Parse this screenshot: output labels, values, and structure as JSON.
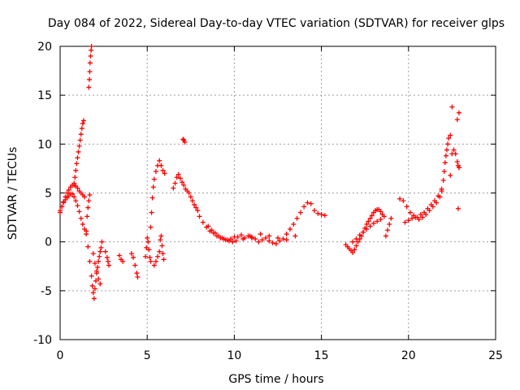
{
  "chart_data": {
    "type": "scatter",
    "title": "Day 084 of 2022, Sidereal Day-to-day VTEC variation (SDTVAR) for receiver glps",
    "xlabel": "GPS time / hours",
    "ylabel": "SDTVAR / TECUs",
    "xlim": [
      0,
      25
    ],
    "ylim": [
      -10,
      20
    ],
    "xticks": [
      0,
      5,
      10,
      15,
      20,
      25
    ],
    "xtick_labels": [
      "0",
      "5",
      "10",
      "15",
      "20",
      "25"
    ],
    "yticks": [
      -10,
      -5,
      0,
      5,
      10,
      15,
      20
    ],
    "ytick_labels": [
      "-10",
      "-5",
      "0",
      "5",
      "10",
      "15",
      "20"
    ],
    "grid": true,
    "marker": "+",
    "color": "#ff0000",
    "series": [
      {
        "name": "SDTVAR",
        "x": [
          0.0,
          0.1,
          0.2,
          0.3,
          0.4,
          0.5,
          0.6,
          0.7,
          0.8,
          0.9,
          1.0,
          1.1,
          1.2,
          1.3,
          1.4,
          0.0,
          0.1,
          0.2,
          0.3,
          0.4,
          0.5,
          0.6,
          0.7,
          0.8,
          0.9,
          1.0,
          1.1,
          1.2,
          1.3,
          1.4,
          1.5,
          1.55,
          1.6,
          1.65,
          1.7,
          0.8,
          0.85,
          0.9,
          0.95,
          1.0,
          1.05,
          1.1,
          1.15,
          1.2,
          1.25,
          1.3,
          1.35,
          1.65,
          1.68,
          1.7,
          1.72,
          1.75,
          1.78,
          1.8,
          1.5,
          1.6,
          1.7,
          1.8,
          1.85,
          1.9,
          1.95,
          2.0,
          2.05,
          2.1,
          2.15,
          2.2,
          2.25,
          2.3,
          2.35,
          2.4,
          1.9,
          2.0,
          2.1,
          2.2,
          2.3,
          2.6,
          2.7,
          2.75,
          2.8,
          3.4,
          3.5,
          3.6,
          4.1,
          4.2,
          4.3,
          4.4,
          4.45,
          4.9,
          4.95,
          5.0,
          5.05,
          5.1,
          5.15,
          5.2,
          5.4,
          5.5,
          5.6,
          5.7,
          5.75,
          5.8,
          5.85,
          5.9,
          5.95,
          5.2,
          5.25,
          5.3,
          5.35,
          5.4,
          5.5,
          5.6,
          5.7,
          5.8,
          5.9,
          6.0,
          6.5,
          6.6,
          6.7,
          6.8,
          6.9,
          7.0,
          7.1,
          7.2,
          7.3,
          7.4,
          7.5,
          7.6,
          7.7,
          7.8,
          7.06,
          7.1,
          7.16,
          7.9,
          8.0,
          8.2,
          8.4,
          8.6,
          8.8,
          9.0,
          9.2,
          9.4,
          9.6,
          9.8,
          10.0,
          10.2,
          10.4,
          10.6,
          10.8,
          11.0,
          8.5,
          8.7,
          8.9,
          9.1,
          9.3,
          9.5,
          9.7,
          9.9,
          10.1,
          10.5,
          10.9,
          11.0,
          11.2,
          11.4,
          11.6,
          11.8,
          12.0,
          12.2,
          12.4,
          12.6,
          12.8,
          13.0,
          13.2,
          13.4,
          13.6,
          13.8,
          14.0,
          14.2,
          14.4,
          14.6,
          14.8,
          15.0,
          15.2,
          11.5,
          12.0,
          12.5,
          13.0,
          13.5,
          16.4,
          16.5,
          16.6,
          16.7,
          16.8,
          16.9,
          17.0,
          17.1,
          17.2,
          17.3,
          17.4,
          17.5,
          17.6,
          17.7,
          17.8,
          17.9,
          18.0,
          18.1,
          18.2,
          18.3,
          18.4,
          18.5,
          18.6,
          16.8,
          17.0,
          17.2,
          17.4,
          17.6,
          17.8,
          18.0,
          18.2,
          18.4,
          18.7,
          18.8,
          18.9,
          19.0,
          19.5,
          19.7,
          19.9,
          20.1,
          20.3,
          20.5,
          20.7,
          20.9,
          21.1,
          21.3,
          21.5,
          21.7,
          21.9,
          19.8,
          20.0,
          20.2,
          20.4,
          20.6,
          20.8,
          21.0,
          21.2,
          21.4,
          21.6,
          21.8,
          21.9,
          22.0,
          22.05,
          22.1,
          22.15,
          22.2,
          22.25,
          22.3,
          22.4,
          22.5,
          22.6,
          22.7,
          22.8,
          22.85,
          22.9,
          22.4,
          22.8,
          22.9,
          22.5,
          22.9,
          22.85
        ],
        "y": [
          3.0,
          3.6,
          4.1,
          4.6,
          5.0,
          5.3,
          5.6,
          5.8,
          5.8,
          5.7,
          5.5,
          5.2,
          5.0,
          4.8,
          4.6,
          3.2,
          3.6,
          4.0,
          4.3,
          4.5,
          4.7,
          4.9,
          4.9,
          4.6,
          4.2,
          3.7,
          3.1,
          2.4,
          1.8,
          1.3,
          1.1,
          2.6,
          3.5,
          4.2,
          4.8,
          6.0,
          6.6,
          7.3,
          8.0,
          8.6,
          9.2,
          9.8,
          10.4,
          11.0,
          11.6,
          12.1,
          12.4,
          15.8,
          16.6,
          17.4,
          18.3,
          19.0,
          19.6,
          20.0,
          0.8,
          -0.5,
          -2.0,
          -3.5,
          -4.5,
          -5.2,
          -5.8,
          -4.8,
          -4.0,
          -3.2,
          -2.6,
          -2.0,
          -1.5,
          -1.0,
          -0.6,
          0.0,
          -1.2,
          -2.2,
          -3.0,
          -3.8,
          -4.3,
          -1.0,
          -1.6,
          -2.0,
          -2.4,
          -1.4,
          -1.8,
          -2.0,
          -1.2,
          -1.6,
          -2.4,
          -3.2,
          -3.6,
          -1.5,
          -0.6,
          0.4,
          0.0,
          -0.8,
          -1.6,
          -2.0,
          -2.4,
          -2.0,
          -1.5,
          -1.0,
          0.2,
          0.6,
          -0.4,
          -1.2,
          -1.8,
          1.5,
          3.0,
          4.5,
          5.6,
          6.4,
          7.2,
          7.8,
          8.3,
          7.8,
          7.3,
          7.0,
          5.5,
          6.0,
          6.6,
          6.9,
          6.5,
          6.1,
          5.8,
          5.4,
          5.2,
          5.0,
          4.6,
          4.2,
          3.8,
          3.5,
          10.5,
          10.4,
          10.2,
          3.2,
          2.6,
          2.0,
          1.5,
          1.1,
          0.9,
          0.6,
          0.4,
          0.3,
          0.2,
          0.3,
          0.5,
          0.5,
          0.7,
          0.4,
          0.6,
          0.4,
          1.6,
          1.2,
          0.9,
          0.6,
          0.4,
          0.2,
          0.1,
          0.0,
          0.1,
          0.3,
          0.6,
          0.5,
          0.3,
          0.0,
          0.2,
          0.4,
          0.1,
          -0.1,
          -0.2,
          0.1,
          0.3,
          0.8,
          1.3,
          1.8,
          2.4,
          3.0,
          3.6,
          4.0,
          3.9,
          3.2,
          2.9,
          2.8,
          2.7,
          0.8,
          0.6,
          0.4,
          0.2,
          0.6,
          -0.3,
          -0.5,
          -0.7,
          -0.9,
          -1.1,
          -0.8,
          -0.4,
          0.0,
          0.3,
          0.6,
          1.0,
          1.4,
          1.8,
          2.1,
          2.4,
          2.7,
          3.0,
          3.2,
          3.3,
          3.3,
          3.1,
          2.8,
          2.6,
          0.0,
          0.3,
          0.7,
          1.0,
          1.3,
          1.6,
          1.9,
          2.1,
          2.3,
          0.6,
          1.2,
          1.8,
          2.4,
          4.4,
          4.2,
          3.6,
          3.0,
          2.7,
          2.5,
          2.8,
          3.0,
          3.4,
          3.8,
          4.2,
          4.7,
          5.2,
          2.0,
          2.2,
          2.4,
          2.5,
          2.3,
          2.5,
          2.8,
          3.2,
          3.6,
          4.0,
          4.6,
          5.4,
          6.3,
          7.2,
          8.1,
          8.8,
          9.4,
          10.0,
          10.6,
          10.9,
          9.0,
          9.4,
          9.0,
          8.2,
          7.8,
          7.6,
          6.8,
          12.5,
          13.2,
          13.8,
          7.6,
          3.4
        ]
      }
    ]
  }
}
